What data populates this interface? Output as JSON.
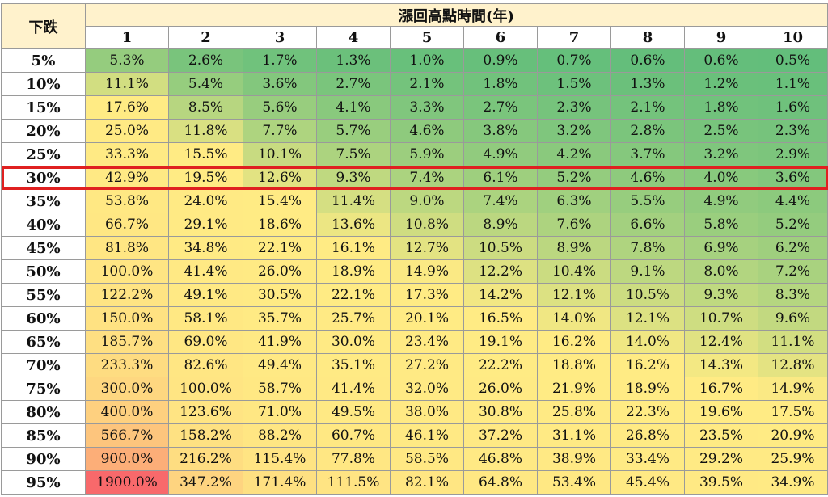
{
  "chart_data": {
    "type": "heatmap",
    "title": "漲回高點時間(年)",
    "row_header": "下跌",
    "columns": [
      "1",
      "2",
      "3",
      "4",
      "5",
      "6",
      "7",
      "8",
      "9",
      "10"
    ],
    "rows": [
      "5%",
      "10%",
      "15%",
      "20%",
      "25%",
      "30%",
      "35%",
      "40%",
      "45%",
      "50%",
      "55%",
      "60%",
      "65%",
      "70%",
      "75%",
      "80%",
      "85%",
      "90%",
      "95%"
    ],
    "values": [
      [
        "5.3%",
        "2.6%",
        "1.7%",
        "1.3%",
        "1.0%",
        "0.9%",
        "0.7%",
        "0.6%",
        "0.6%",
        "0.5%"
      ],
      [
        "11.1%",
        "5.4%",
        "3.6%",
        "2.7%",
        "2.1%",
        "1.8%",
        "1.5%",
        "1.3%",
        "1.2%",
        "1.1%"
      ],
      [
        "17.6%",
        "8.5%",
        "5.6%",
        "4.1%",
        "3.3%",
        "2.7%",
        "2.3%",
        "2.1%",
        "1.8%",
        "1.6%"
      ],
      [
        "25.0%",
        "11.8%",
        "7.7%",
        "5.7%",
        "4.6%",
        "3.8%",
        "3.2%",
        "2.8%",
        "2.5%",
        "2.3%"
      ],
      [
        "33.3%",
        "15.5%",
        "10.1%",
        "7.5%",
        "5.9%",
        "4.9%",
        "4.2%",
        "3.7%",
        "3.2%",
        "2.9%"
      ],
      [
        "42.9%",
        "19.5%",
        "12.6%",
        "9.3%",
        "7.4%",
        "6.1%",
        "5.2%",
        "4.6%",
        "4.0%",
        "3.6%"
      ],
      [
        "53.8%",
        "24.0%",
        "15.4%",
        "11.4%",
        "9.0%",
        "7.4%",
        "6.3%",
        "5.5%",
        "4.9%",
        "4.4%"
      ],
      [
        "66.7%",
        "29.1%",
        "18.6%",
        "13.6%",
        "10.8%",
        "8.9%",
        "7.6%",
        "6.6%",
        "5.8%",
        "5.2%"
      ],
      [
        "81.8%",
        "34.8%",
        "22.1%",
        "16.1%",
        "12.7%",
        "10.5%",
        "8.9%",
        "7.8%",
        "6.9%",
        "6.2%"
      ],
      [
        "100.0%",
        "41.4%",
        "26.0%",
        "18.9%",
        "14.9%",
        "12.2%",
        "10.4%",
        "9.1%",
        "8.0%",
        "7.2%"
      ],
      [
        "122.2%",
        "49.1%",
        "30.5%",
        "22.1%",
        "17.3%",
        "14.2%",
        "12.1%",
        "10.5%",
        "9.3%",
        "8.3%"
      ],
      [
        "150.0%",
        "58.1%",
        "35.7%",
        "25.7%",
        "20.1%",
        "16.5%",
        "14.0%",
        "12.1%",
        "10.7%",
        "9.6%"
      ],
      [
        "185.7%",
        "69.0%",
        "41.9%",
        "30.0%",
        "23.4%",
        "19.1%",
        "16.2%",
        "14.0%",
        "12.4%",
        "11.1%"
      ],
      [
        "233.3%",
        "82.6%",
        "49.4%",
        "35.1%",
        "27.2%",
        "22.2%",
        "18.8%",
        "16.2%",
        "14.3%",
        "12.8%"
      ],
      [
        "300.0%",
        "100.0%",
        "58.7%",
        "41.4%",
        "32.0%",
        "26.0%",
        "21.9%",
        "18.9%",
        "16.7%",
        "14.9%"
      ],
      [
        "400.0%",
        "123.6%",
        "71.0%",
        "49.5%",
        "38.0%",
        "30.8%",
        "25.8%",
        "22.3%",
        "19.6%",
        "17.5%"
      ],
      [
        "566.7%",
        "158.2%",
        "88.2%",
        "60.7%",
        "46.1%",
        "37.2%",
        "31.1%",
        "26.8%",
        "23.5%",
        "20.9%"
      ],
      [
        "900.0%",
        "216.2%",
        "115.4%",
        "77.8%",
        "58.5%",
        "46.8%",
        "38.9%",
        "33.4%",
        "29.2%",
        "25.9%"
      ],
      [
        "1900.0%",
        "347.2%",
        "171.4%",
        "111.5%",
        "82.1%",
        "64.8%",
        "53.4%",
        "45.4%",
        "39.5%",
        "34.9%"
      ]
    ],
    "highlighted_row": "30%",
    "colors": {
      "low": "#63be7b",
      "mid": "#ffeb84",
      "high": "#f8696b",
      "header_fill": "#fff2cc",
      "highlight_border": "#e02020"
    }
  }
}
